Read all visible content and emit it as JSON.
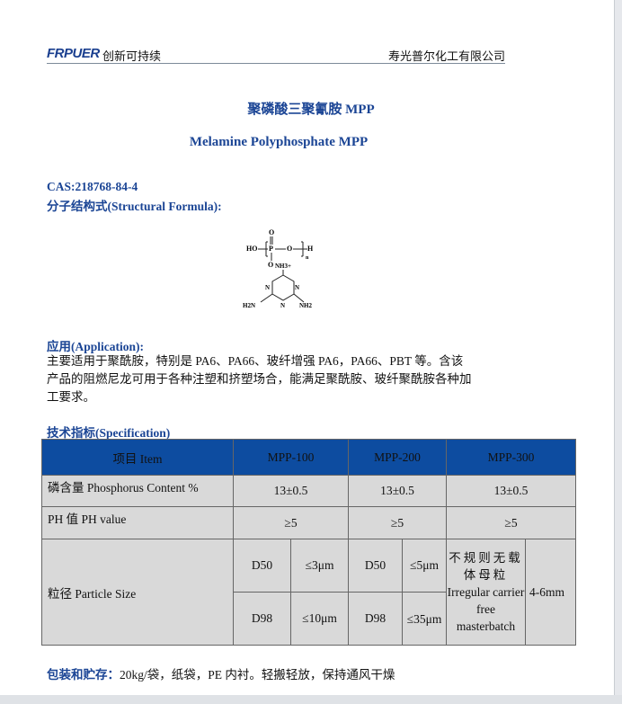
{
  "header": {
    "logo": "FRPUER",
    "slogan": "创新可持续",
    "company": "寿光普尔化工有限公司"
  },
  "title_cn": "聚磷酸三聚氰胺 MPP",
  "title_en": "Melamine Polyphosphate MPP",
  "cas": "CAS:218768-84-4",
  "structure_label": "分子结构式(Structural Formula):",
  "formula": {
    "o_top": "O",
    "ho": "HO",
    "p": "P",
    "o_mid": "O",
    "h": "H",
    "n": "n",
    "o_bottom": "O",
    "nh3": "NH3+",
    "n1": "N",
    "n2": "N",
    "n3": "N",
    "nh2_left": "H2N",
    "nh2_right": "NH2"
  },
  "application": {
    "label": "应用(Application):",
    "lines": [
      "主要适用于聚酰胺，特别是 PA6、PA66、玻纤增强 PA6，PA66、PBT 等。含该",
      "产品的阻燃尼龙可用于各种注塑和挤塑场合，能满足聚酰胺、玻纤聚酰胺各种加",
      "工要求。"
    ]
  },
  "spec": {
    "label": "技术指标(Specification)",
    "headers": [
      "项目 Item",
      "MPP-100",
      "MPP-200",
      "MPP-300"
    ],
    "phosphorus": {
      "label": "磷含量 Phosphorus Content %",
      "values": [
        "13±0.5",
        "13±0.5",
        "13±0.5"
      ]
    },
    "ph": {
      "label": "PH 值  PH value",
      "values": [
        "≥5",
        "≥5",
        "≥5"
      ]
    },
    "particle": {
      "label": "粒径 Particle Size",
      "mpp100": {
        "d50": "D50",
        "d50v": "≤3μm",
        "d98": "D98",
        "d98v": "≤10μm"
      },
      "mpp200": {
        "d50": "D50",
        "d50v": "≤5μm",
        "d98": "D98",
        "d98v": "≤35μm"
      },
      "mpp300": {
        "desc_cn": "不规则无载体母粒",
        "desc_en": "Irregular carrier free masterbatch",
        "size": "4-6mm"
      }
    }
  },
  "packing": {
    "label": "包装和贮存：",
    "text": "20kg/袋，纸袋，PE 内衬。轻搬轻放，保持通风干燥"
  }
}
